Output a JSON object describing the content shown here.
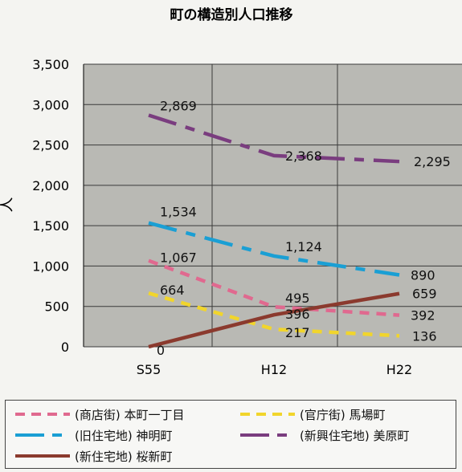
{
  "chart_data": {
    "type": "line",
    "title": "町の構造別人口推移",
    "ylabel": "人",
    "xlabel": "",
    "ylim": [
      0,
      3500
    ],
    "yticks": [
      "3,500",
      "3,000",
      "2,500",
      "2,000",
      "1,500",
      "1,000",
      "500",
      "0"
    ],
    "yticks_values": [
      3500,
      3000,
      2500,
      2000,
      1500,
      1000,
      500,
      0
    ],
    "x_categories": [
      "S55",
      "H12",
      "H22"
    ],
    "grid": true,
    "legend_position": "bottom",
    "series": [
      {
        "name": "(商店街) 本町一丁目",
        "style": "dashed",
        "color": "#e0698f",
        "points": [
          [
            0,
            1067
          ],
          [
            1,
            495
          ],
          [
            2,
            392
          ]
        ],
        "labels": [
          "1,067",
          "495",
          "392"
        ]
      },
      {
        "name": "(官庁街) 馬場町",
        "style": "dashed",
        "color": "#f1d52c",
        "points": [
          [
            0,
            664
          ],
          [
            1,
            217
          ],
          [
            2,
            136
          ]
        ],
        "labels": [
          "664",
          "217",
          "136"
        ]
      },
      {
        "name": "(旧住宅地) 神明町",
        "style": "dashdot",
        "color": "#1a9fd4",
        "points": [
          [
            0,
            1534
          ],
          [
            1,
            1124
          ],
          [
            2,
            890
          ]
        ],
        "labels": [
          "1,534",
          "1,124",
          "890"
        ]
      },
      {
        "name": "(新興住宅地) 美原町",
        "style": "dashdot",
        "color": "#7a3d7f",
        "points": [
          [
            0,
            2869
          ],
          [
            1,
            2368
          ],
          [
            2,
            2295
          ]
        ],
        "labels": [
          "2,869",
          "2,368",
          "2,295"
        ]
      },
      {
        "name": "(新住宅地) 桜新町",
        "style": "solid",
        "color": "#8b3a2e",
        "points": [
          [
            0,
            0
          ],
          [
            1,
            396
          ],
          [
            2,
            659
          ]
        ],
        "labels": [
          "0",
          "396",
          "659"
        ]
      }
    ]
  },
  "legend": {
    "items": [
      "(商店街) 本町一丁目",
      "(官庁街) 馬場町",
      "(旧住宅地) 神明町",
      "(新興住宅地) 美原町",
      "(新住宅地) 桜新町"
    ]
  }
}
